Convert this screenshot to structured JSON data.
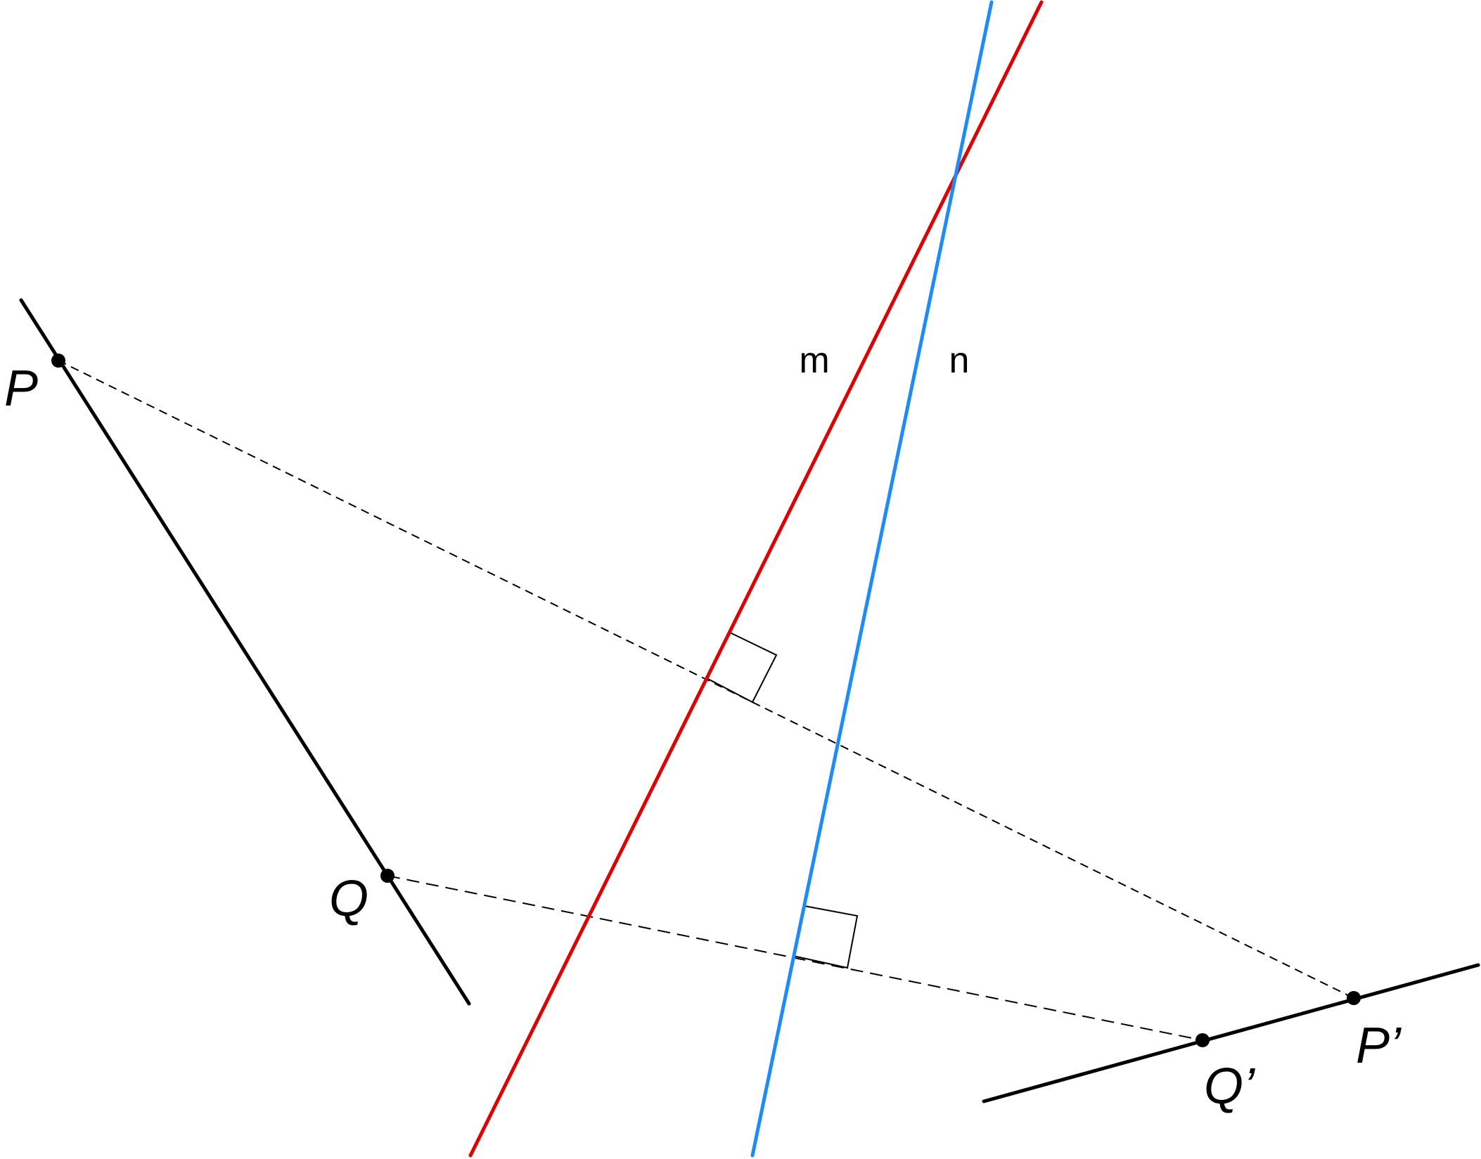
{
  "lines": {
    "m": "m",
    "n": "n"
  },
  "points": {
    "P": "P",
    "Q": "Q",
    "P_prime": "P’",
    "Q_prime": "Q’"
  }
}
